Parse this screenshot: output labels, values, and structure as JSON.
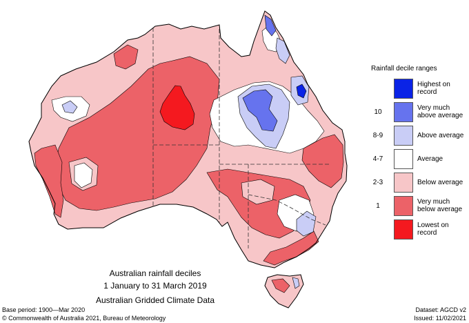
{
  "legend": {
    "title": "Rainfall decile ranges",
    "items": [
      {
        "decile": "",
        "label_lines": [
          "Highest on",
          "record"
        ],
        "color": "#0a23e6"
      },
      {
        "decile": "10",
        "label_lines": [
          "Very much",
          "above average"
        ],
        "color": "#6673ee"
      },
      {
        "decile": "8-9",
        "label_lines": [
          "Above average"
        ],
        "color": "#c9cdf6"
      },
      {
        "decile": "4-7",
        "label_lines": [
          "Average"
        ],
        "color": "#ffffff"
      },
      {
        "decile": "2-3",
        "label_lines": [
          "Below average"
        ],
        "color": "#f7c6c8"
      },
      {
        "decile": "1",
        "label_lines": [
          "Very much",
          "below average"
        ],
        "color": "#ec6268"
      },
      {
        "decile": "",
        "label_lines": [
          "Lowest on",
          "record"
        ],
        "color": "#f4191f"
      }
    ]
  },
  "map": {
    "title_lines": [
      "Australian rainfall deciles",
      "1 January to 31 March 2019",
      "Australian Gridded Climate Data"
    ],
    "colors": {
      "highest": "#0a23e6",
      "very_much_above": "#6673ee",
      "above": "#c9cdf6",
      "average": "#ffffff",
      "below": "#f7c6c8",
      "very_much_below": "#ec6268",
      "lowest": "#f4191f",
      "outline": "#000000"
    }
  },
  "footer": {
    "base_period": "Base period: 1900—Mar 2020",
    "dataset": "Dataset: AGCD v2",
    "copyright": "© Commonwealth of Australia 2021, Bureau of Meteorology",
    "issued": "Issued: 11/02/2021"
  }
}
